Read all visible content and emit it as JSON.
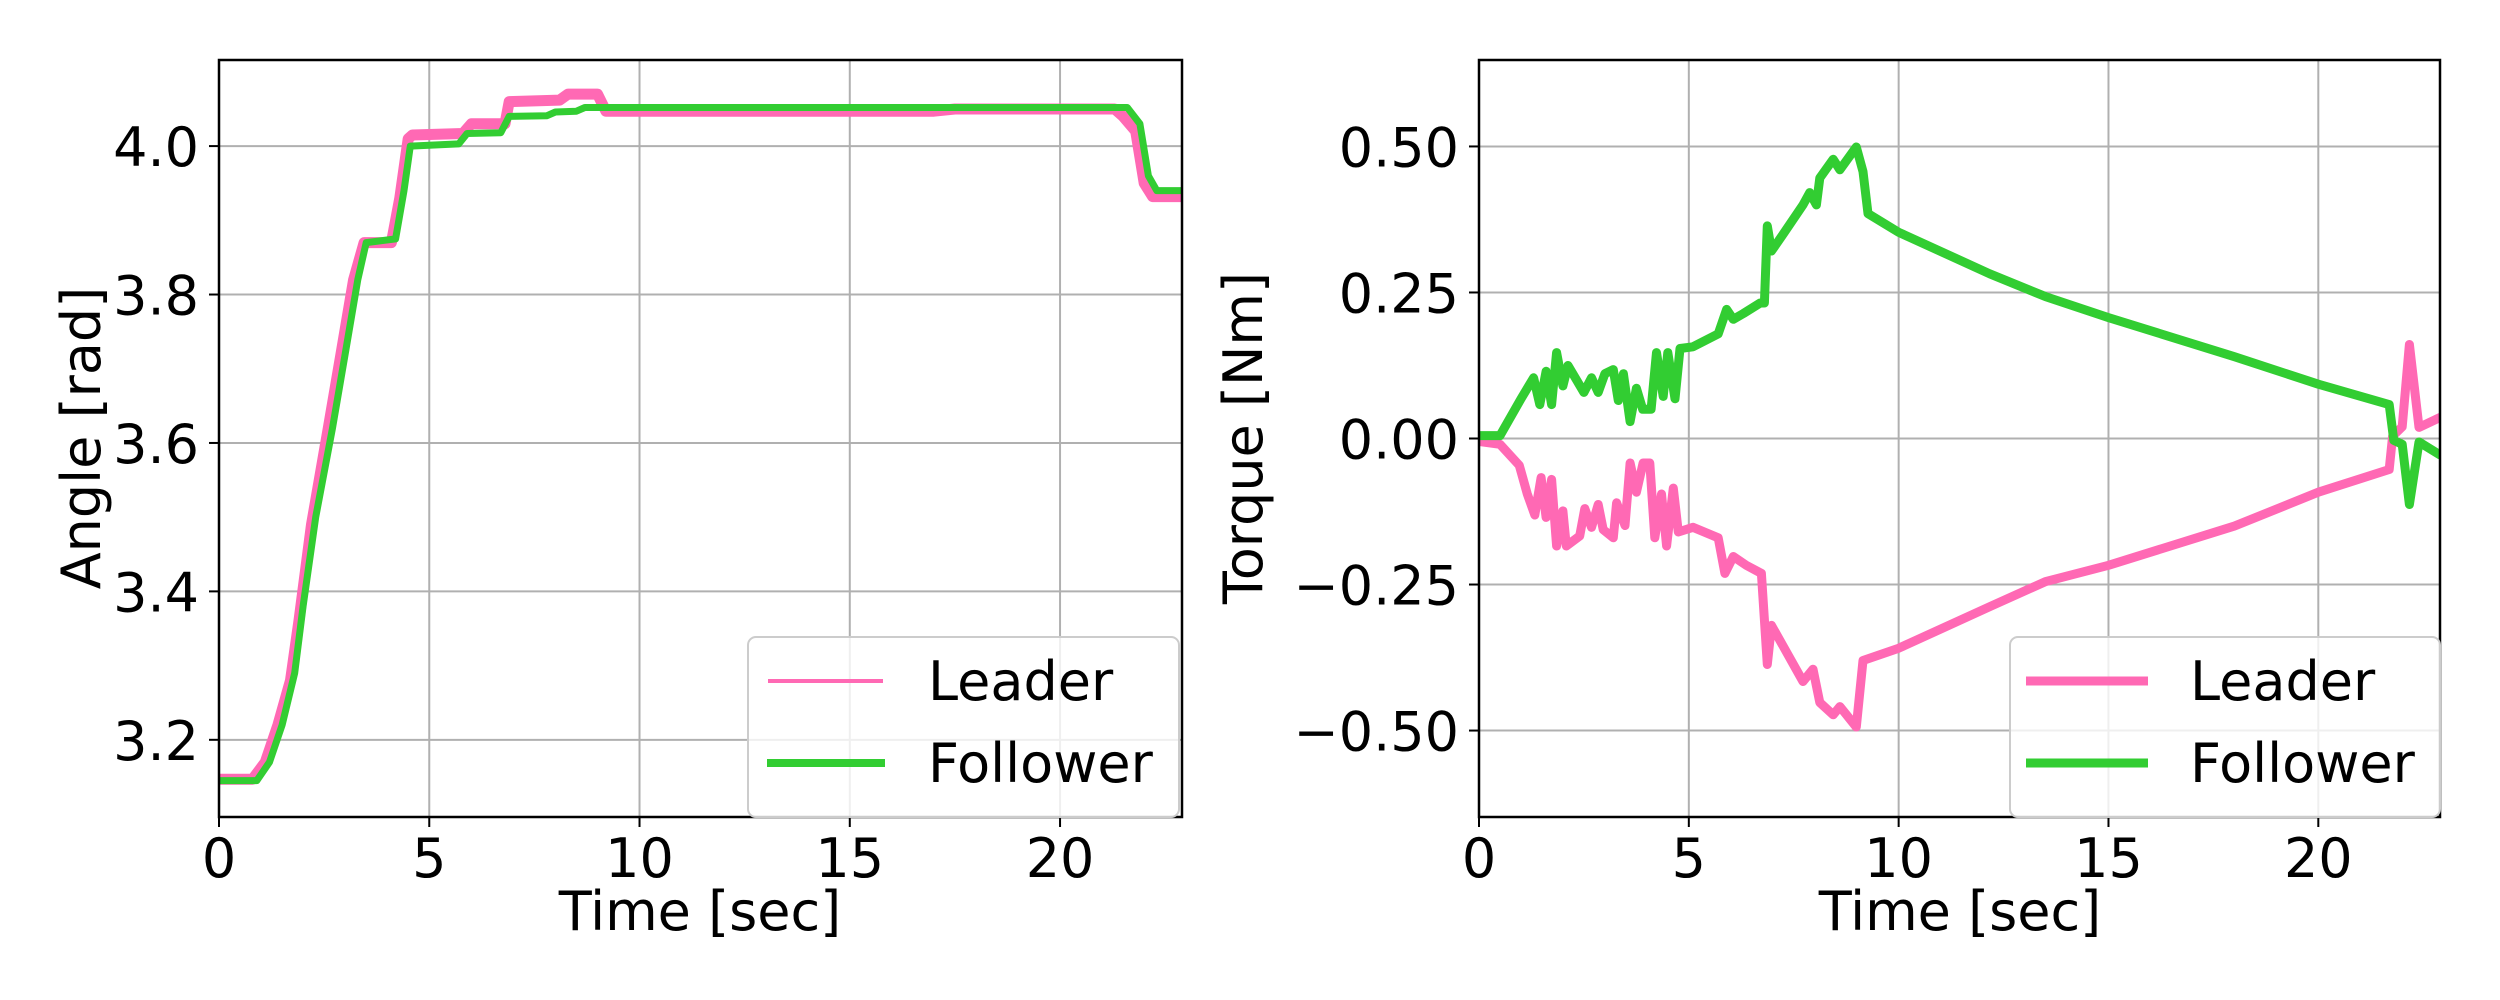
{
  "colors": {
    "leader": "#FF69B4",
    "follower": "#32CD32"
  },
  "chart_data": [
    {
      "type": "line",
      "xlabel": "Time [sec]",
      "ylabel": "Angle [rad]",
      "xlim": [
        0,
        22.9
      ],
      "ylim": [
        3.096,
        4.116
      ],
      "xticks": [
        0,
        5,
        10,
        15,
        20
      ],
      "xtick_labels": [
        "0",
        "5",
        "10",
        "15",
        "20"
      ],
      "yticks": [
        3.2,
        3.4,
        3.6,
        3.8,
        4.0
      ],
      "ytick_labels": [
        "3.2",
        "3.4",
        "3.6",
        "3.8",
        "4.0"
      ],
      "grid": true,
      "legend": {
        "placement": "lower-right",
        "entries": [
          "Leader",
          "Follower"
        ]
      },
      "series": [
        {
          "name": "Leader",
          "color": "#FF69B4",
          "points": [
            [
              0,
              3.147
            ],
            [
              0.8,
              3.147
            ],
            [
              1.1,
              3.17
            ],
            [
              1.4,
              3.22
            ],
            [
              1.7,
              3.28
            ],
            [
              1.9,
              3.36
            ],
            [
              2.2,
              3.49
            ],
            [
              2.6,
              3.62
            ],
            [
              2.9,
              3.72
            ],
            [
              3.2,
              3.82
            ],
            [
              3.45,
              3.87
            ],
            [
              4.1,
              3.87
            ],
            [
              4.3,
              3.93
            ],
            [
              4.5,
              4.01
            ],
            [
              4.6,
              4.015
            ],
            [
              5.8,
              4.017
            ],
            [
              6.0,
              4.03
            ],
            [
              6.8,
              4.03
            ],
            [
              6.9,
              4.06
            ],
            [
              8.1,
              4.062
            ],
            [
              8.3,
              4.07
            ],
            [
              9.0,
              4.07
            ],
            [
              9.2,
              4.047
            ],
            [
              17,
              4.047
            ],
            [
              17.5,
              4.05
            ],
            [
              21.3,
              4.05
            ],
            [
              21.5,
              4.04
            ],
            [
              21.8,
              4.02
            ],
            [
              22.0,
              3.95
            ],
            [
              22.2,
              3.932
            ],
            [
              22.9,
              3.932
            ]
          ]
        },
        {
          "name": "Follower",
          "color": "#32CD32",
          "points": [
            [
              0,
              3.145
            ],
            [
              0.9,
              3.145
            ],
            [
              1.2,
              3.17
            ],
            [
              1.5,
              3.22
            ],
            [
              1.8,
              3.29
            ],
            [
              2.0,
              3.38
            ],
            [
              2.3,
              3.5
            ],
            [
              2.7,
              3.62
            ],
            [
              3.0,
              3.72
            ],
            [
              3.3,
              3.82
            ],
            [
              3.5,
              3.87
            ],
            [
              4.2,
              3.875
            ],
            [
              4.4,
              3.94
            ],
            [
              4.55,
              4.0
            ],
            [
              5.7,
              4.003
            ],
            [
              5.9,
              4.017
            ],
            [
              6.7,
              4.018
            ],
            [
              6.9,
              4.04
            ],
            [
              7.8,
              4.041
            ],
            [
              8.0,
              4.046
            ],
            [
              8.5,
              4.047
            ],
            [
              8.7,
              4.052
            ],
            [
              21.6,
              4.052
            ],
            [
              21.9,
              4.03
            ],
            [
              22.1,
              3.96
            ],
            [
              22.3,
              3.94
            ],
            [
              22.9,
              3.94
            ]
          ]
        }
      ]
    },
    {
      "type": "line",
      "xlabel": "Time [sec]",
      "ylabel": "Torque [Nm]",
      "xlim": [
        0,
        22.9
      ],
      "ylim": [
        -0.648,
        0.648
      ],
      "xticks": [
        0,
        5,
        10,
        15,
        20
      ],
      "xtick_labels": [
        "0",
        "5",
        "10",
        "15",
        "20"
      ],
      "yticks": [
        -0.5,
        -0.25,
        0,
        0.25,
        0.5
      ],
      "ytick_labels": [
        "−0.50",
        "−0.25",
        "0.00",
        "0.25",
        "0.50"
      ],
      "grid": true,
      "legend": {
        "placement": "lower-right",
        "entries": [
          "Leader",
          "Follower"
        ]
      },
      "series": [
        {
          "name": "Leader",
          "color": "#FF69B4",
          "points": [
            [
              0,
              -0.005
            ],
            [
              0.5,
              -0.01
            ],
            [
              0.96,
              -0.046
            ],
            [
              1.15,
              -0.095
            ],
            [
              1.33,
              -0.131
            ],
            [
              1.48,
              -0.067
            ],
            [
              1.6,
              -0.135
            ],
            [
              1.73,
              -0.07
            ],
            [
              1.85,
              -0.184
            ],
            [
              2.0,
              -0.124
            ],
            [
              2.08,
              -0.184
            ],
            [
              2.4,
              -0.167
            ],
            [
              2.52,
              -0.12
            ],
            [
              2.68,
              -0.152
            ],
            [
              2.84,
              -0.113
            ],
            [
              2.96,
              -0.156
            ],
            [
              3.2,
              -0.17
            ],
            [
              3.28,
              -0.11
            ],
            [
              3.48,
              -0.149
            ],
            [
              3.6,
              -0.042
            ],
            [
              3.75,
              -0.092
            ],
            [
              3.91,
              -0.042
            ],
            [
              4.07,
              -0.042
            ],
            [
              4.19,
              -0.17
            ],
            [
              4.35,
              -0.095
            ],
            [
              4.47,
              -0.184
            ],
            [
              4.63,
              -0.085
            ],
            [
              4.75,
              -0.16
            ],
            [
              5.1,
              -0.152
            ],
            [
              5.7,
              -0.17
            ],
            [
              5.86,
              -0.231
            ],
            [
              6.06,
              -0.202
            ],
            [
              6.37,
              -0.217
            ],
            [
              6.73,
              -0.231
            ],
            [
              6.87,
              -0.387
            ],
            [
              6.97,
              -0.32
            ],
            [
              7.72,
              -0.416
            ],
            [
              7.96,
              -0.395
            ],
            [
              8.12,
              -0.452
            ],
            [
              8.44,
              -0.473
            ],
            [
              8.6,
              -0.459
            ],
            [
              8.99,
              -0.494
            ],
            [
              9.15,
              -0.38
            ],
            [
              10.0,
              -0.359
            ],
            [
              12.17,
              -0.288
            ],
            [
              13.5,
              -0.245
            ],
            [
              15.0,
              -0.217
            ],
            [
              18,
              -0.15
            ],
            [
              20.0,
              -0.092
            ],
            [
              21.69,
              -0.053
            ],
            [
              21.77,
              0.004
            ],
            [
              22.0,
              0.02
            ],
            [
              22.17,
              0.161
            ],
            [
              22.4,
              0.019
            ],
            [
              22.9,
              0.036
            ]
          ]
        },
        {
          "name": "Follower",
          "color": "#32CD32",
          "points": [
            [
              0,
              0.005
            ],
            [
              0.5,
              0.005
            ],
            [
              1.0,
              0.068
            ],
            [
              1.3,
              0.104
            ],
            [
              1.45,
              0.058
            ],
            [
              1.6,
              0.115
            ],
            [
              1.73,
              0.058
            ],
            [
              1.85,
              0.147
            ],
            [
              2.0,
              0.09
            ],
            [
              2.12,
              0.125
            ],
            [
              2.5,
              0.079
            ],
            [
              2.68,
              0.104
            ],
            [
              2.84,
              0.079
            ],
            [
              3.0,
              0.111
            ],
            [
              3.2,
              0.118
            ],
            [
              3.32,
              0.065
            ],
            [
              3.44,
              0.111
            ],
            [
              3.6,
              0.029
            ],
            [
              3.75,
              0.086
            ],
            [
              3.9,
              0.05
            ],
            [
              4.1,
              0.05
            ],
            [
              4.23,
              0.147
            ],
            [
              4.39,
              0.072
            ],
            [
              4.5,
              0.147
            ],
            [
              4.67,
              0.068
            ],
            [
              4.79,
              0.154
            ],
            [
              5.1,
              0.157
            ],
            [
              5.7,
              0.179
            ],
            [
              5.9,
              0.221
            ],
            [
              6.06,
              0.204
            ],
            [
              6.3,
              0.214
            ],
            [
              6.7,
              0.232
            ],
            [
              6.8,
              0.232
            ],
            [
              6.87,
              0.364
            ],
            [
              6.97,
              0.321
            ],
            [
              7.25,
              0.35
            ],
            [
              7.72,
              0.4
            ],
            [
              7.88,
              0.421
            ],
            [
              8.04,
              0.4
            ],
            [
              8.12,
              0.446
            ],
            [
              8.44,
              0.478
            ],
            [
              8.6,
              0.46
            ],
            [
              8.99,
              0.499
            ],
            [
              9.15,
              0.457
            ],
            [
              9.27,
              0.385
            ],
            [
              10.0,
              0.353
            ],
            [
              12.17,
              0.282
            ],
            [
              13.5,
              0.243
            ],
            [
              15.0,
              0.207
            ],
            [
              18,
              0.14
            ],
            [
              20.0,
              0.093
            ],
            [
              21.69,
              0.058
            ],
            [
              21.8,
              -0.003
            ],
            [
              22.0,
              -0.01
            ],
            [
              22.17,
              -0.113
            ],
            [
              22.4,
              -0.006
            ],
            [
              22.9,
              -0.028
            ]
          ]
        }
      ]
    }
  ]
}
